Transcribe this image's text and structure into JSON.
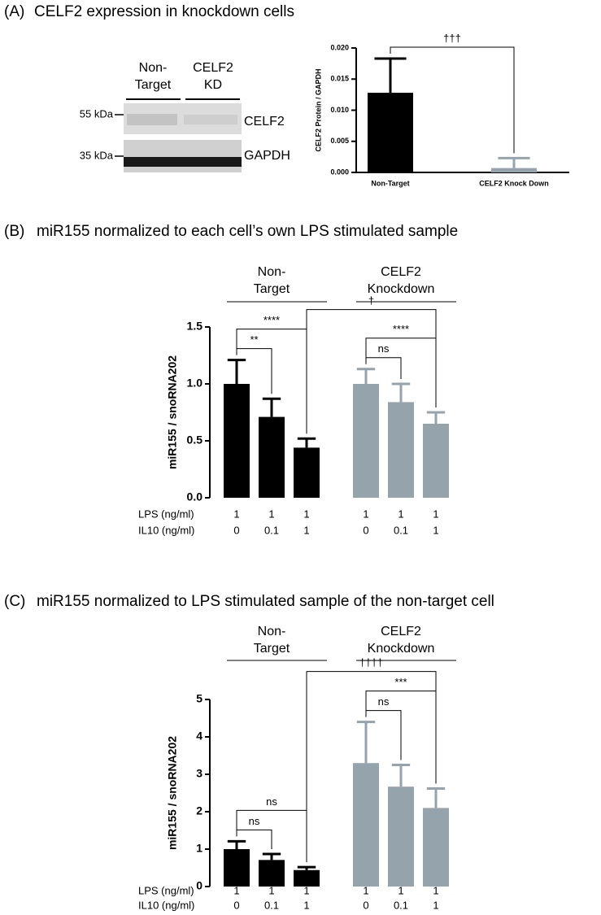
{
  "chart_data": [
    {
      "type": "bar",
      "panel_label": "(A)",
      "title": "CELF2 expression in knockdown cells",
      "blot": {
        "lane_labels": [
          [
            "Non-",
            "Target"
          ],
          [
            "CELF2",
            "KD"
          ]
        ],
        "markers": [
          "55 kDa",
          "35 kDa"
        ],
        "bands": [
          "CELF2",
          "GAPDH"
        ]
      },
      "ylabel": "CELF2 Protein / GAPDH",
      "categories": [
        "Non-Target",
        "CELF2 Knock Down"
      ],
      "values": [
        0.0128,
        0.0007
      ],
      "errors": [
        0.0055,
        0.0016
      ],
      "colors": [
        "#000000",
        "#95a3ad"
      ],
      "ylim": [
        0,
        0.02
      ],
      "yticks": [
        {
          "value": 0,
          "label": "0.000"
        },
        0.005,
        {
          "value": 0.01,
          "label": "0.010"
        },
        0.015,
        {
          "value": 0.02,
          "label": "0.020"
        }
      ],
      "x_axis_line": true,
      "annotations": [
        {
          "from": 0,
          "to": 1,
          "text": "†††"
        }
      ]
    },
    {
      "type": "bar",
      "panel_label": "(B)",
      "title": "miR155 normalized to each cell’s own LPS stimulated sample",
      "ylabel": "miR155 / snoRNA202",
      "groups": [
        {
          "label": [
            "Non-",
            "Target"
          ],
          "from": 0,
          "to": 2
        },
        {
          "label": [
            "CELF2",
            "Knockdown"
          ],
          "from": 3,
          "to": 5
        }
      ],
      "rows": [
        {
          "label": "LPS (ng/ml)",
          "values": [
            1,
            1,
            1,
            1,
            1,
            1
          ]
        },
        {
          "label": "IL10 (ng/ml)",
          "values": [
            0,
            0.1,
            1,
            0,
            0.1,
            1
          ]
        }
      ],
      "values": [
        1.0,
        0.71,
        0.44,
        1.0,
        0.84,
        0.65
      ],
      "errors": [
        0.21,
        0.16,
        0.08,
        0.13,
        0.16,
        0.1
      ],
      "colors": [
        "#000000",
        "#000000",
        "#000000",
        "#95a3ad",
        "#95a3ad",
        "#95a3ad"
      ],
      "ylim": [
        0,
        1.5
      ],
      "yticks": [
        {
          "value": 0,
          "label": "0.0"
        },
        0.5,
        {
          "value": 1,
          "label": "1.0"
        },
        1.5
      ],
      "x_axis_line": false,
      "annotations": [
        {
          "from": 0,
          "to": 1,
          "text": "**"
        },
        {
          "from": 0,
          "to": 2,
          "text": "****"
        },
        {
          "from": 3,
          "to": 4,
          "text": "ns"
        },
        {
          "from": 3,
          "to": 5,
          "text": "****"
        },
        {
          "from": 2,
          "to": 5,
          "text": "†"
        }
      ]
    },
    {
      "type": "bar",
      "panel_label": "(C)",
      "title": "miR155 normalized to LPS stimulated sample of the non-target cell",
      "ylabel": "miR155 / snoRNA202",
      "groups": [
        {
          "label": [
            "Non-",
            "Target"
          ],
          "from": 0,
          "to": 2
        },
        {
          "label": [
            "CELF2",
            "Knockdown"
          ],
          "from": 3,
          "to": 5
        }
      ],
      "rows": [
        {
          "label": "LPS (ng/ml)",
          "values": [
            1,
            1,
            1,
            1,
            1,
            1
          ]
        },
        {
          "label": "IL10 (ng/ml)",
          "values": [
            0,
            0.1,
            1,
            0,
            0.1,
            1
          ]
        }
      ],
      "values": [
        1.0,
        0.71,
        0.44,
        3.3,
        2.67,
        2.1
      ],
      "errors": [
        0.21,
        0.16,
        0.08,
        1.1,
        0.58,
        0.52
      ],
      "colors": [
        "#000000",
        "#000000",
        "#000000",
        "#95a3ad",
        "#95a3ad",
        "#95a3ad"
      ],
      "ylim": [
        0,
        5
      ],
      "yticks": [
        0,
        1,
        2,
        3,
        4,
        5
      ],
      "x_axis_line": false,
      "annotations": [
        {
          "from": 0,
          "to": 1,
          "text": "ns"
        },
        {
          "from": 0,
          "to": 2,
          "text": "ns"
        },
        {
          "from": 3,
          "to": 4,
          "text": "ns"
        },
        {
          "from": 3,
          "to": 5,
          "text": "***"
        },
        {
          "from": 2,
          "to": 5,
          "text": "††††"
        }
      ]
    }
  ]
}
